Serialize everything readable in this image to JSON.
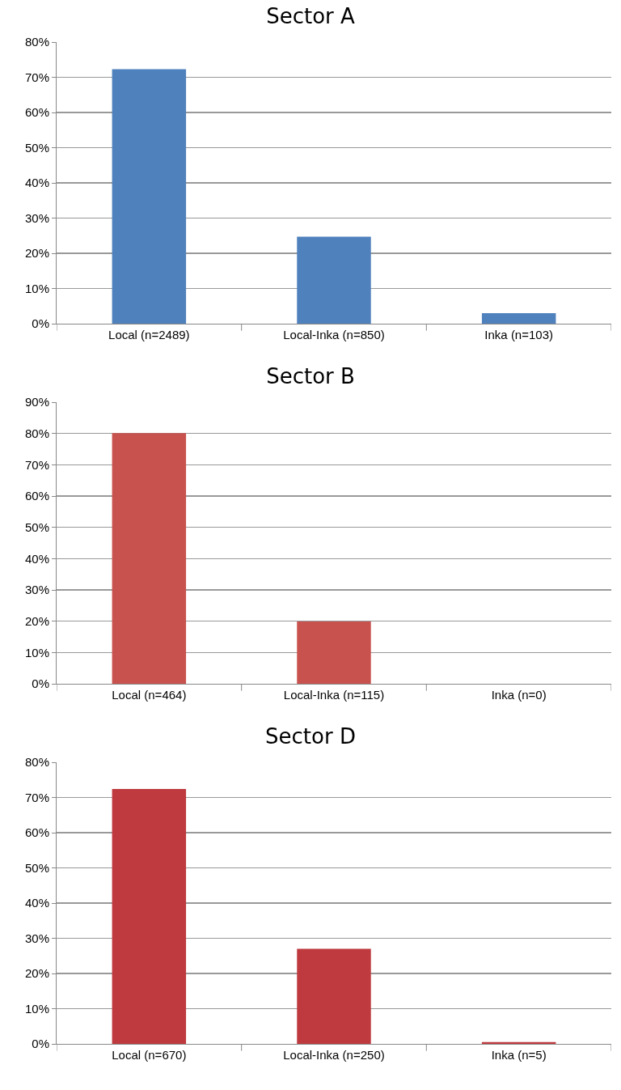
{
  "chart_data": [
    {
      "type": "bar",
      "title": "Sector A",
      "categories": [
        "Local (n=2489)",
        "Local-Inka (n=850)",
        "Inka (n=103)"
      ],
      "values": [
        72.3,
        24.7,
        3.0
      ],
      "color": "#4f81bd",
      "ylim": [
        0,
        80
      ],
      "yticks": [
        {
          "value": 0,
          "label": "0%"
        },
        {
          "value": 10,
          "label": "10%"
        },
        {
          "value": 20,
          "label": "20%"
        },
        {
          "value": 30,
          "label": "30%"
        },
        {
          "value": 40,
          "label": "40%"
        },
        {
          "value": 50,
          "label": "50%"
        },
        {
          "value": 60,
          "label": "60%"
        },
        {
          "value": 70,
          "label": "70%"
        },
        {
          "value": 80,
          "label": "80%"
        }
      ],
      "grid": "y"
    },
    {
      "type": "bar",
      "title": "Sector B",
      "categories": [
        "Local (n=464)",
        "Local-Inka (n=115)",
        "Inka (n=0)"
      ],
      "values": [
        80.1,
        19.9,
        0
      ],
      "color": "#c8524e",
      "ylim": [
        0,
        90
      ],
      "yticks": [
        {
          "value": 0,
          "label": "0%"
        },
        {
          "value": 10,
          "label": "10%"
        },
        {
          "value": 20,
          "label": "20%"
        },
        {
          "value": 30,
          "label": "30%"
        },
        {
          "value": 40,
          "label": "40%"
        },
        {
          "value": 50,
          "label": "50%"
        },
        {
          "value": 60,
          "label": "60%"
        },
        {
          "value": 70,
          "label": "70%"
        },
        {
          "value": 80,
          "label": "80%"
        },
        {
          "value": 90,
          "label": "90%"
        }
      ],
      "grid": "y"
    },
    {
      "type": "bar",
      "title": "Sector D",
      "categories": [
        "Local (n=670)",
        "Local-Inka (n=250)",
        "Inka (n=5)"
      ],
      "values": [
        72.4,
        27.0,
        0.5
      ],
      "color": "#be3a3f",
      "ylim": [
        0,
        80
      ],
      "yticks": [
        {
          "value": 0,
          "label": "0%"
        },
        {
          "value": 10,
          "label": "10%"
        },
        {
          "value": 20,
          "label": "20%"
        },
        {
          "value": 30,
          "label": "30%"
        },
        {
          "value": 40,
          "label": "40%"
        },
        {
          "value": 50,
          "label": "50%"
        },
        {
          "value": 60,
          "label": "60%"
        },
        {
          "value": 70,
          "label": "70%"
        },
        {
          "value": 80,
          "label": "80%"
        }
      ],
      "grid": "y"
    }
  ]
}
